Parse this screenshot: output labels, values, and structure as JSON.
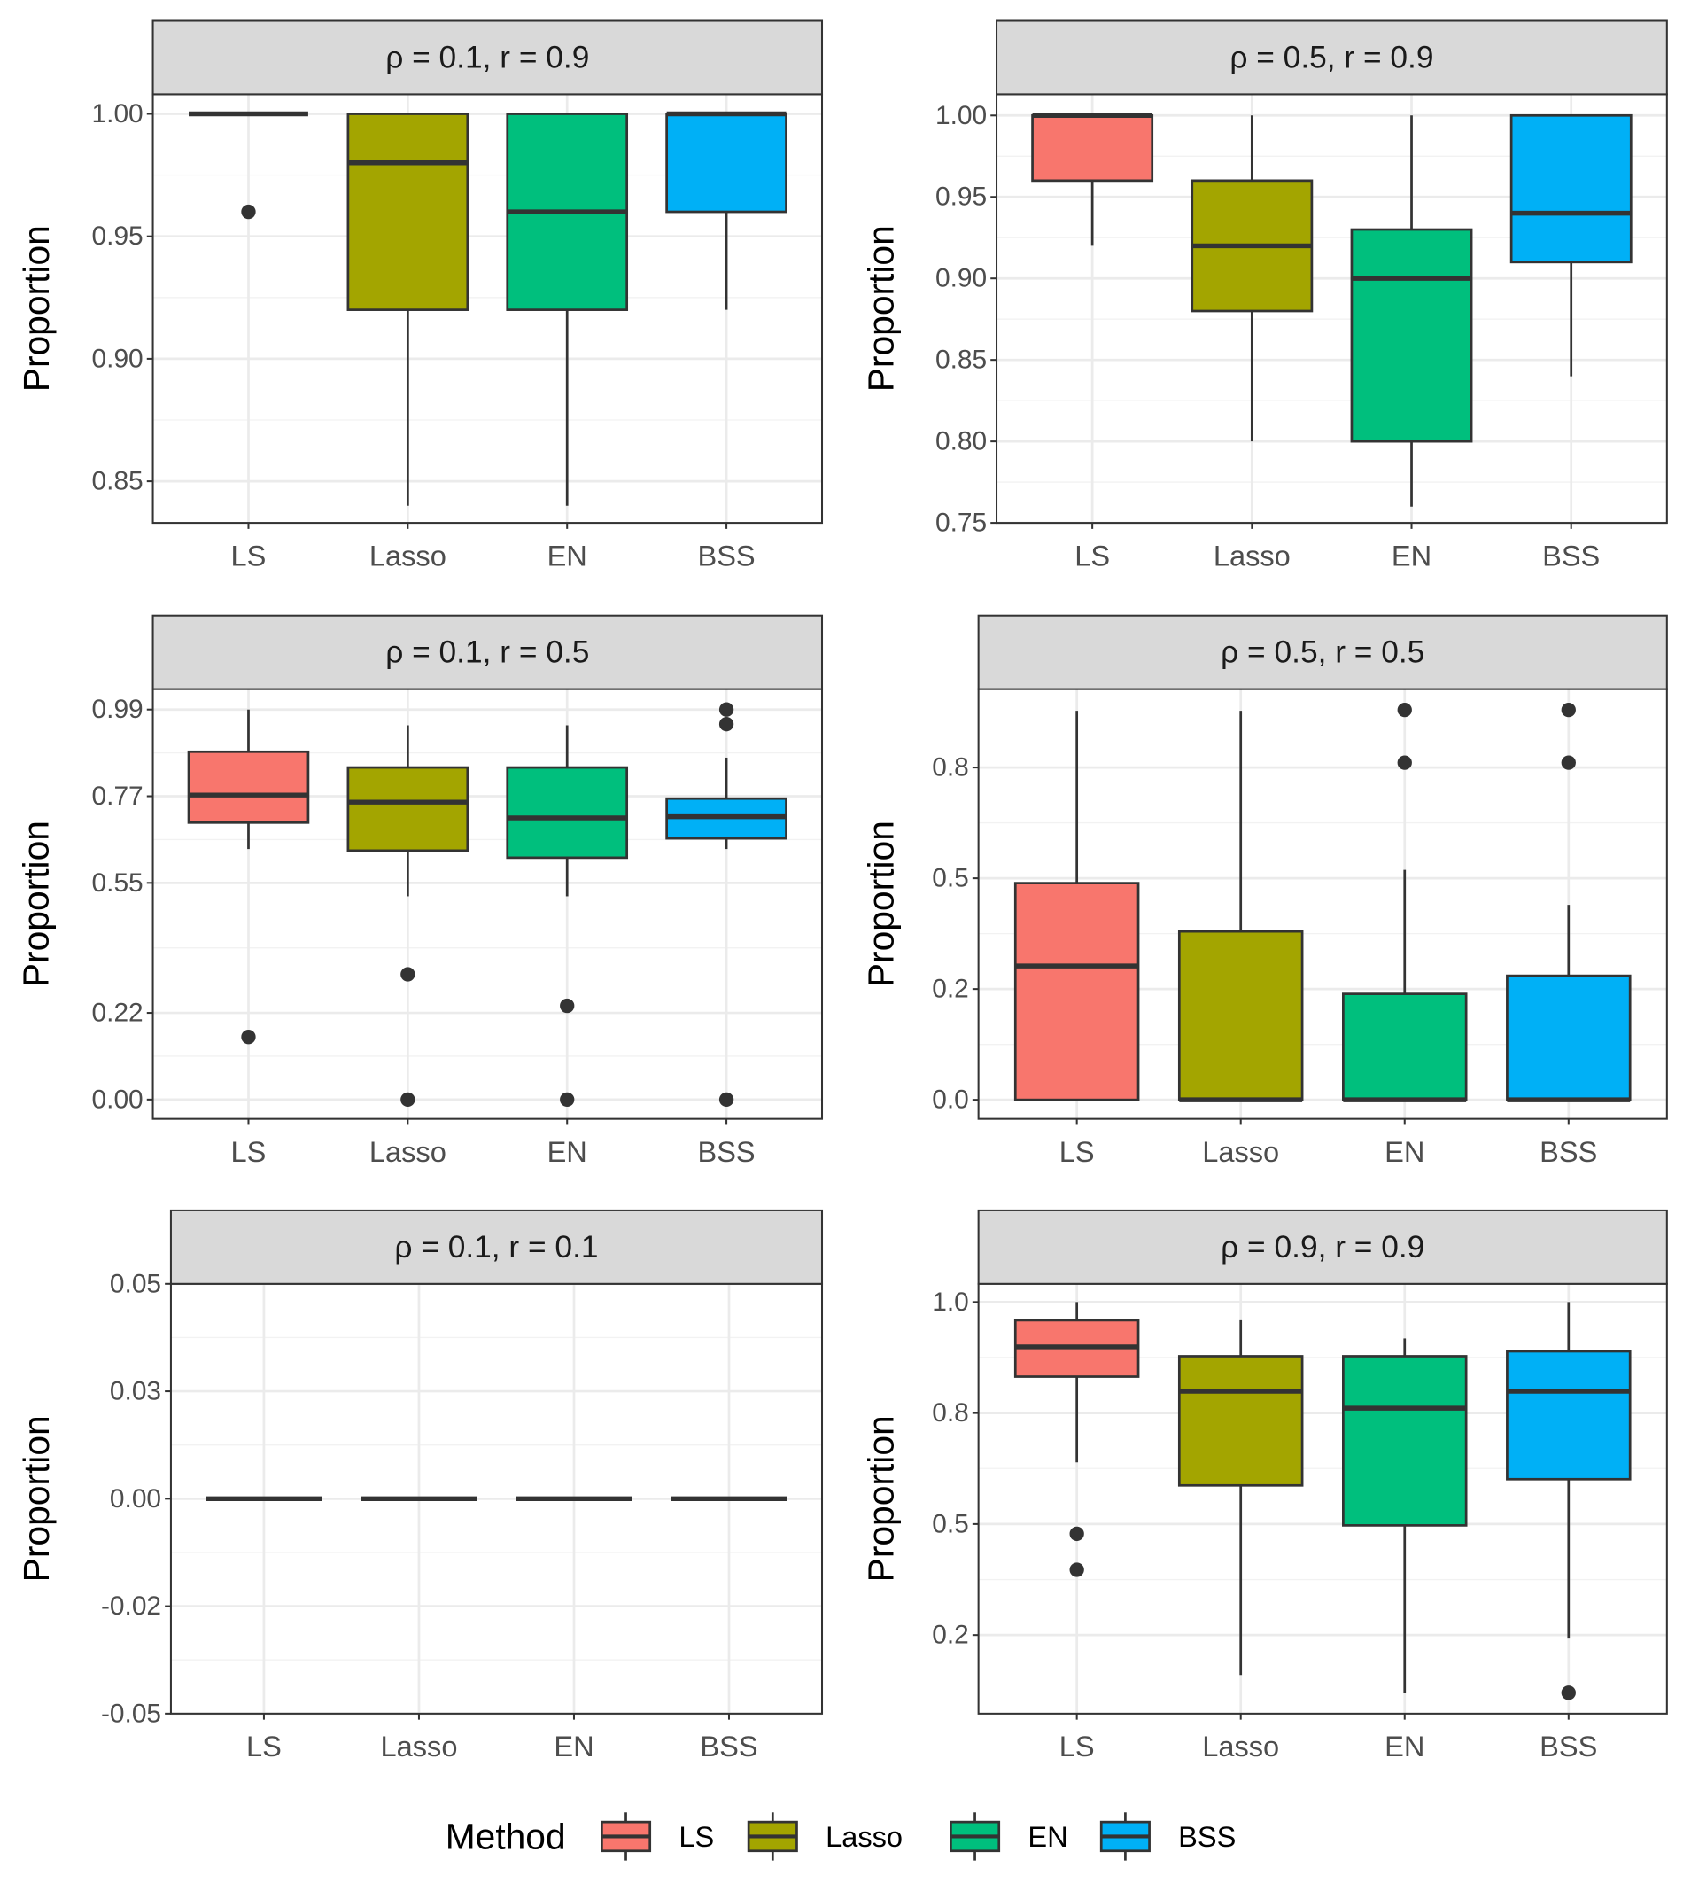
{
  "legend_title": "Method",
  "chart_data": [
    {
      "type": "box",
      "title": "ρ = 0.1,  r = 0.9",
      "ylabel": "Proportion",
      "categories": [
        "LS",
        "Lasso",
        "EN",
        "BSS"
      ],
      "colors": [
        "#F8766D",
        "#A3A500",
        "#00BF7D",
        "#00B0F6"
      ],
      "ylim": [
        0.833,
        1.008
      ],
      "yticks": [
        0.85,
        {
          "value": 0.9,
          "label": "0.90"
        },
        0.95,
        {
          "value": 1,
          "label": "1.00"
        }
      ],
      "grid": true,
      "boxes": [
        {
          "min": 1,
          "q1": 1,
          "median": 1,
          "q3": 1,
          "max": 1,
          "outliers": [
            0.96
          ]
        },
        {
          "min": 0.84,
          "q1": 0.92,
          "median": 0.98,
          "q3": 1,
          "max": 1,
          "outliers": []
        },
        {
          "min": 0.84,
          "q1": 0.92,
          "median": 0.96,
          "q3": 1,
          "max": 1,
          "outliers": []
        },
        {
          "min": 0.92,
          "q1": 0.96,
          "median": 1,
          "q3": 1,
          "max": 1,
          "outliers": []
        }
      ]
    },
    {
      "type": "box",
      "title": "ρ = 0.5,  r = 0.9",
      "ylabel": "Proportion",
      "categories": [
        "LS",
        "Lasso",
        "EN",
        "BSS"
      ],
      "colors": [
        "#F8766D",
        "#A3A500",
        "#00BF7D",
        "#00B0F6"
      ],
      "ylim": [
        0.75,
        1.013
      ],
      "yticks": [
        0.75,
        {
          "value": 0.8,
          "label": "0.80"
        },
        0.85,
        {
          "value": 0.9,
          "label": "0.90"
        },
        0.95,
        {
          "value": 1,
          "label": "1.00"
        }
      ],
      "grid": true,
      "boxes": [
        {
          "min": 0.92,
          "q1": 0.96,
          "median": 1,
          "q3": 1,
          "max": 1,
          "outliers": []
        },
        {
          "min": 0.8,
          "q1": 0.88,
          "median": 0.92,
          "q3": 0.96,
          "max": 1,
          "outliers": []
        },
        {
          "min": 0.76,
          "q1": 0.8,
          "median": 0.9,
          "q3": 0.93,
          "max": 1,
          "outliers": []
        },
        {
          "min": 0.84,
          "q1": 0.91,
          "median": 0.94,
          "q3": 1,
          "max": 1,
          "outliers": []
        }
      ]
    },
    {
      "type": "box",
      "title": "ρ = 0.1,  r = 0.5",
      "ylabel": "Proportion",
      "categories": [
        "LS",
        "Lasso",
        "EN",
        "BSS"
      ],
      "colors": [
        "#F8766D",
        "#A3A500",
        "#00BF7D",
        "#00B0F6"
      ],
      "ylim": [
        -0.049,
        1.042
      ],
      "yticks": [
        {
          "value": 0,
          "label": "0.00"
        },
        0.22,
        0.55,
        0.77,
        0.99
      ],
      "grid": true,
      "boxes": [
        {
          "min": 0.636,
          "q1": 0.703,
          "median": 0.773,
          "q3": 0.883,
          "max": 0.99,
          "outliers": [
            0.159
          ]
        },
        {
          "min": 0.516,
          "q1": 0.632,
          "median": 0.755,
          "q3": 0.843,
          "max": 0.95,
          "outliers": [
            0.318,
            0
          ]
        },
        {
          "min": 0.516,
          "q1": 0.614,
          "median": 0.715,
          "q3": 0.843,
          "max": 0.95,
          "outliers": [
            0.238,
            0
          ]
        },
        {
          "min": 0.636,
          "q1": 0.663,
          "median": 0.718,
          "q3": 0.764,
          "max": 0.868,
          "outliers": [
            0.99,
            0.953,
            0
          ]
        }
      ]
    },
    {
      "type": "box",
      "title": "ρ = 0.5,  r = 0.5",
      "ylabel": "Proportion",
      "categories": [
        "LS",
        "Lasso",
        "EN",
        "BSS"
      ],
      "colors": [
        "#F8766D",
        "#A3A500",
        "#00BF7D",
        "#00B0F6"
      ],
      "ylim": [
        -0.043,
        0.927
      ],
      "yticks": [
        {
          "value": 0,
          "label": "0.0"
        },
        {
          "value": 0.25,
          "label": "0.2"
        },
        0.5,
        {
          "value": 0.75,
          "label": "0.8"
        }
      ],
      "grid": true,
      "boxes": [
        {
          "min": 0,
          "q1": 0,
          "median": 0.302,
          "q3": 0.489,
          "max": 0.878,
          "outliers": []
        },
        {
          "min": 0,
          "q1": 0,
          "median": 0,
          "q3": 0.38,
          "max": 0.878,
          "outliers": []
        },
        {
          "min": 0,
          "q1": 0,
          "median": 0,
          "q3": 0.239,
          "max": 0.519,
          "outliers": [
            0.761,
            0.88
          ]
        },
        {
          "min": 0,
          "q1": 0,
          "median": 0,
          "q3": 0.28,
          "max": 0.44,
          "outliers": [
            0.761,
            0.88
          ]
        }
      ]
    },
    {
      "type": "box",
      "title": "ρ = 0.1,  r = 0.1",
      "ylabel": "Proportion",
      "categories": [
        "LS",
        "Lasso",
        "EN",
        "BSS"
      ],
      "colors": [
        "#F8766D",
        "#A3A500",
        "#00BF7D",
        "#00B0F6"
      ],
      "ylim": [
        -0.05,
        0.05
      ],
      "yticks": [
        -0.05,
        {
          "value": -0.025,
          "label": "-0.02"
        },
        {
          "value": 0,
          "label": "0.00"
        },
        {
          "value": 0.025,
          "label": "0.03"
        },
        0.05
      ],
      "grid": true,
      "boxes": [
        {
          "min": 0,
          "q1": 0,
          "median": 0,
          "q3": 0,
          "max": 0,
          "outliers": []
        },
        {
          "min": 0,
          "q1": 0,
          "median": 0,
          "q3": 0,
          "max": 0,
          "outliers": []
        },
        {
          "min": 0,
          "q1": 0,
          "median": 0,
          "q3": 0,
          "max": 0,
          "outliers": []
        },
        {
          "min": 0,
          "q1": 0,
          "median": 0,
          "q3": 0,
          "max": 0,
          "outliers": []
        }
      ]
    },
    {
      "type": "box",
      "title": "ρ = 0.9,  r = 0.9",
      "ylabel": "Proportion",
      "categories": [
        "LS",
        "Lasso",
        "EN",
        "BSS"
      ],
      "colors": [
        "#F8766D",
        "#A3A500",
        "#00BF7D",
        "#00B0F6"
      ],
      "ylim": [
        0.073,
        1.041
      ],
      "yticks": [
        {
          "value": 0.25,
          "label": "0.2"
        },
        0.5,
        {
          "value": 0.75,
          "label": "0.8"
        },
        {
          "value": 1,
          "label": "1.0"
        }
      ],
      "grid": true,
      "boxes": [
        {
          "min": 0.639,
          "q1": 0.832,
          "median": 0.899,
          "q3": 0.959,
          "max": 1,
          "outliers": [
            0.478,
            0.397
          ]
        },
        {
          "min": 0.16,
          "q1": 0.587,
          "median": 0.799,
          "q3": 0.878,
          "max": 0.959,
          "outliers": []
        },
        {
          "min": 0.12,
          "q1": 0.497,
          "median": 0.761,
          "q3": 0.878,
          "max": 0.918,
          "outliers": []
        },
        {
          "min": 0.242,
          "q1": 0.601,
          "median": 0.799,
          "q3": 0.889,
          "max": 1,
          "outliers": [
            0.12
          ]
        }
      ]
    }
  ]
}
